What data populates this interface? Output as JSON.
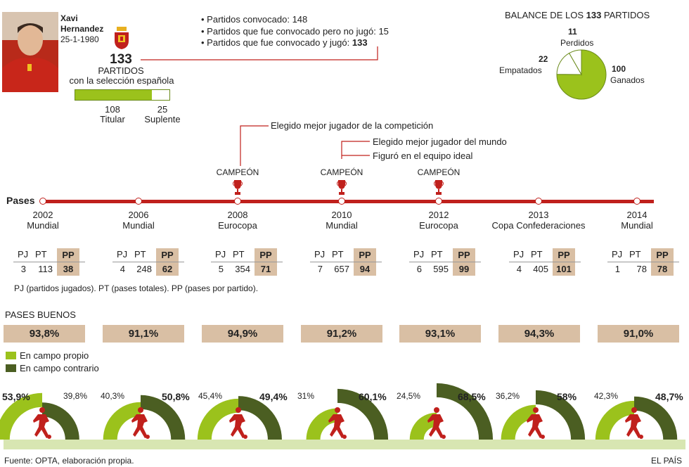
{
  "player": {
    "name_line1": "Xavi",
    "name_line2": "Hernandez",
    "birth": "25-1-1980",
    "total_matches": "133",
    "matches_label": "PARTIDOS",
    "matches_sub": "con la selección española"
  },
  "bullets": [
    {
      "text": "• Partidos convocado: 148",
      "bold": ""
    },
    {
      "text": "• Partidos que fue convocado pero no jugó: 15",
      "bold": ""
    },
    {
      "text": "• Partidos que fue convocado y jugó: ",
      "bold": "133"
    }
  ],
  "titular": {
    "value": "108",
    "label": "Titular",
    "fraction": 0.812
  },
  "suplente": {
    "value": "25",
    "label": "Suplente"
  },
  "balance": {
    "title_pre": "BALANCE DE LOS ",
    "title_num": "133",
    "title_post": " PARTIDOS",
    "perdidos_num": "11",
    "perdidos_label": "Perdidos",
    "empatados_num": "22",
    "empatados_label": "Empatados",
    "ganados_num": "100",
    "ganados_label": "Ganados"
  },
  "timeline": {
    "pases_label": "Pases",
    "annotations": {
      "a2008": "Elegido mejor jugador de la competición",
      "a2010a": "Elegido mejor jugador del mundo",
      "a2010b": "Figuró en el equipo ideal"
    },
    "champion_label": "CAMPEÓN"
  },
  "stats_headers": {
    "pj": "PJ",
    "pt": "PT",
    "pp": "PP"
  },
  "legend_note": "PJ (partidos jugados). PT (pases totales). PP (pases por partido).",
  "pases_buenos_title": "PASES BUENOS",
  "legend": {
    "own": "En campo propio",
    "opp": "En campo contrario"
  },
  "colors": {
    "red": "#c0201c",
    "own": "#9bc21c",
    "opp": "#4b5e22",
    "pp_box": "#d9bfa4",
    "ground": "#d8e6b2"
  },
  "chart_data": {
    "type": "table",
    "tournaments": [
      {
        "year": "2002",
        "name": "Mundial",
        "champion": false,
        "pj": "3",
        "pt": "113",
        "pp": "38",
        "pases_buenos": "93,8%",
        "own": "53,9%",
        "opp": "39,8%",
        "own_v": 53.9,
        "opp_v": 39.8
      },
      {
        "year": "2006",
        "name": "Mundial",
        "champion": false,
        "pj": "4",
        "pt": "248",
        "pp": "62",
        "pases_buenos": "91,1%",
        "own": "40,3%",
        "opp": "50,8%",
        "own_v": 40.3,
        "opp_v": 50.8
      },
      {
        "year": "2008",
        "name": "Eurocopa",
        "champion": true,
        "pj": "5",
        "pt": "354",
        "pp": "71",
        "pases_buenos": "94,9%",
        "own": "45,4%",
        "opp": "49,4%",
        "own_v": 45.4,
        "opp_v": 49.4
      },
      {
        "year": "2010",
        "name": "Mundial",
        "champion": true,
        "pj": "7",
        "pt": "657",
        "pp": "94",
        "pases_buenos": "91,2%",
        "own": "31%",
        "opp": "60,1%",
        "own_v": 31,
        "opp_v": 60.1
      },
      {
        "year": "2012",
        "name": "Eurocopa",
        "champion": true,
        "pj": "6",
        "pt": "595",
        "pp": "99",
        "pases_buenos": "93,1%",
        "own": "24,5%",
        "opp": "68,5%",
        "own_v": 24.5,
        "opp_v": 68.5
      },
      {
        "year": "2013",
        "name": "Copa Confederaciones",
        "champion": false,
        "pj": "4",
        "pt": "405",
        "pp": "101",
        "pases_buenos": "94,3%",
        "own": "36,2%",
        "opp": "58%",
        "own_v": 36.2,
        "opp_v": 58
      },
      {
        "year": "2014",
        "name": "Mundial",
        "champion": false,
        "pj": "1",
        "pt": "78",
        "pp": "78",
        "pases_buenos": "91,0%",
        "own": "42,3%",
        "opp": "48,7%",
        "own_v": 42.3,
        "opp_v": 48.7
      }
    ],
    "balance_pie": [
      {
        "label": "Ganados",
        "value": 100
      },
      {
        "label": "Empatados",
        "value": 22
      },
      {
        "label": "Perdidos",
        "value": 11
      }
    ]
  },
  "footer": {
    "source": "Fuente: OPTA, elaboración propia.",
    "brand": "EL PAÍS"
  }
}
